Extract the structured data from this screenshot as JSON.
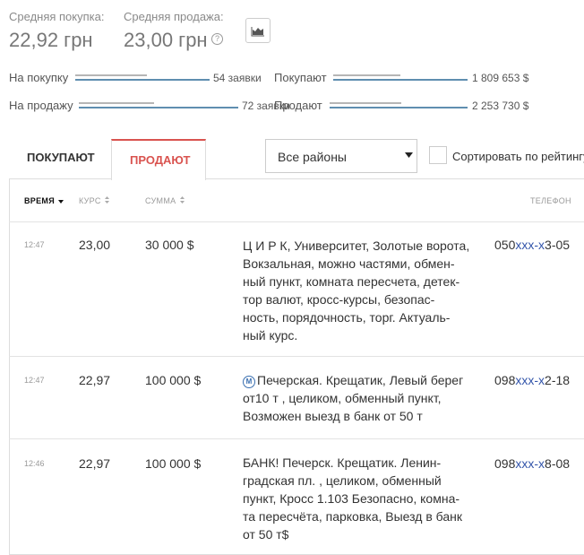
{
  "stats": {
    "buy_label": "Средняя покупка:",
    "buy_value": "22,92 грн",
    "sell_label": "Средняя продажа:",
    "sell_value": "23,00 грн",
    "help_glyph": "?"
  },
  "summary": {
    "buy": {
      "label": "На покупку",
      "count": "54 заявки",
      "who": "Покупают",
      "amount": "1 809 653 $"
    },
    "sell": {
      "label": "На продажу",
      "count": "72 заявки",
      "who": "Продают",
      "amount": "2 253 730 $"
    }
  },
  "tabs": [
    {
      "label": "ПОКУПАЮТ",
      "active": false
    },
    {
      "label": "ПРОДАЮТ",
      "active": true
    }
  ],
  "filters": {
    "district": "Все районы",
    "sort_label": "Сортировать по рейтингу"
  },
  "table": {
    "headers": {
      "time": "ВРЕМЯ",
      "rate": "КУРС",
      "sum": "СУММА",
      "phone": "ТЕЛЕФОН"
    },
    "rows": [
      {
        "time": "12:47",
        "rate": "23,00",
        "sum": "30 000 $",
        "desc": [
          "Ц И Р К, Университет, Золотые ворота,",
          "Вокзальная, можно частями, обмен-",
          "ный пункт, комната пересчета, детек-",
          "тор валют, кросс-курсы, безопас-",
          "ность, порядочность, торг. Актуаль-",
          "ный курс."
        ],
        "phone_prefix": "050",
        "phone_mask": "xxx-x",
        "phone_suffix": "3-05",
        "metro": false
      },
      {
        "time": "12:47",
        "rate": "22,97",
        "sum": "100 000 $",
        "desc": [
          "Печерская. Крещатик, Левый берег",
          "от10 т , целиком, обменный пункт,",
          "Возможен выезд в банк от 50 т"
        ],
        "phone_prefix": "098",
        "phone_mask": "xxx-x",
        "phone_suffix": "2-18",
        "metro": true,
        "metro_glyph": "М"
      },
      {
        "time": "12:46",
        "rate": "22,97",
        "sum": "100 000 $",
        "desc": [
          "БАНК! Печерск. Крещатик. Ленин-",
          "градская пл. , целиком, обменный",
          "пункт, Кросс 1.103 Безопасно, комна-",
          "та пересчёта, парковка, Выезд в банк",
          "от 50 т$"
        ],
        "phone_prefix": "098",
        "phone_mask": "xxx-x",
        "phone_suffix": "8-08",
        "metro": false
      }
    ]
  },
  "colors": {
    "accent": "#d9534f",
    "bar_blue": "#5f8eb0",
    "bar_grey": "#b6b6b6",
    "phone_mask": "#3355aa"
  }
}
